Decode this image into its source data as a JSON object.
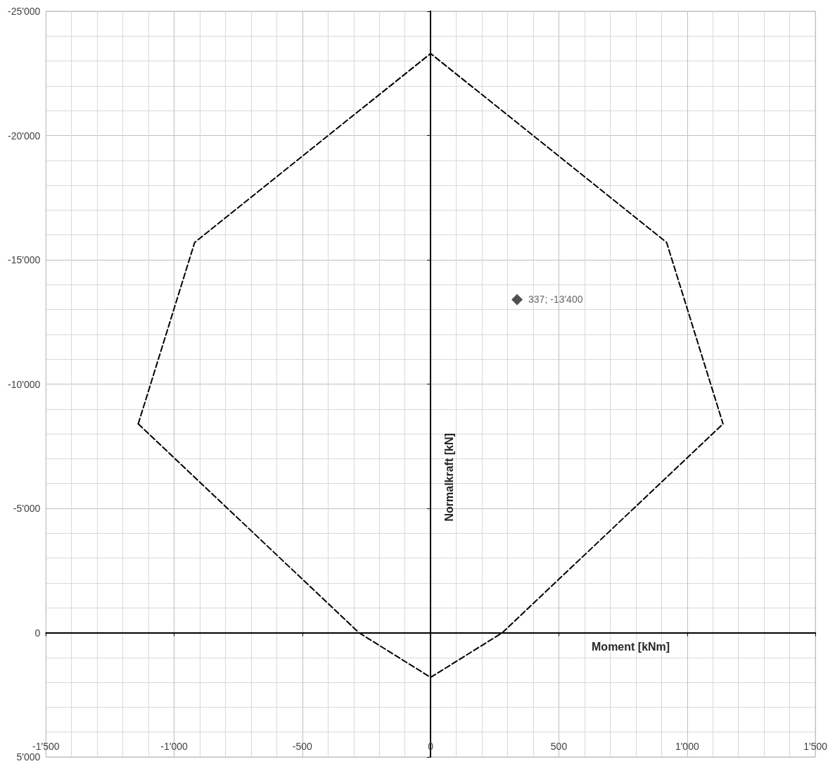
{
  "chart_data": {
    "type": "line",
    "xlabel": "Moment [kNm]",
    "ylabel": "Normalkraft [kN]",
    "xlim": [
      -1500,
      1500
    ],
    "ylim": [
      5000,
      -25000
    ],
    "xticks": [
      {
        "value": -1500,
        "label": "-1'500"
      },
      {
        "value": -1000,
        "label": "-1'000"
      },
      -500,
      0,
      500,
      {
        "value": 1000,
        "label": "1'000"
      },
      {
        "value": 1500,
        "label": "1'500"
      }
    ],
    "yticks": [
      {
        "value": -25000,
        "label": "-25'000"
      },
      {
        "value": -20000,
        "label": "-20'000"
      },
      {
        "value": -15000,
        "label": "-15'000"
      },
      {
        "value": -10000,
        "label": "-10'000"
      },
      {
        "value": -5000,
        "label": "-5'000"
      },
      0,
      {
        "value": 5000,
        "label": "5'000"
      }
    ],
    "grid": true,
    "series": [
      {
        "color": "#000000",
        "line_style": "dashed",
        "marker": "none",
        "x": [
          -1140,
          -920,
          0,
          920,
          1140
        ],
        "values": [
          -8400,
          -15700,
          -23300,
          -15700,
          -8400
        ]
      },
      {
        "color": "#000000",
        "line_style": "dashed",
        "marker": "none",
        "x": [
          -1140,
          -280,
          0,
          280,
          1140
        ],
        "values": [
          -8400,
          0,
          1800,
          0,
          -8400
        ]
      },
      {
        "type": "scatter",
        "color": "#262626",
        "marker": "diamond",
        "x": [
          337
        ],
        "values": [
          -13400
        ],
        "value_labels": [
          "337; -13'400"
        ]
      }
    ]
  }
}
